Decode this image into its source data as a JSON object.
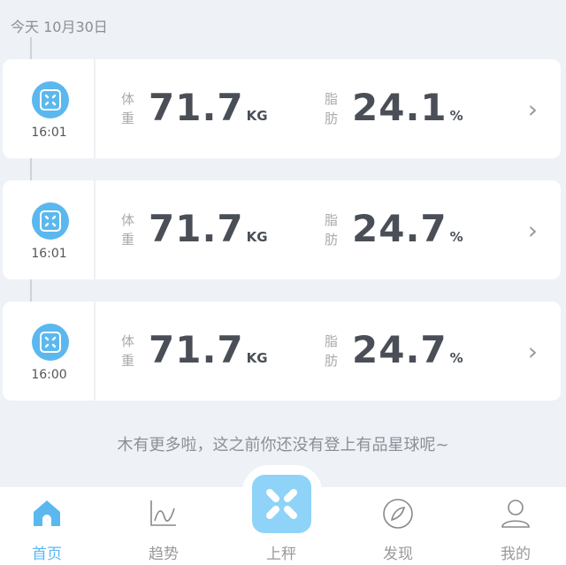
{
  "date": "今天 10月30日",
  "records": [
    {
      "time": "16:01",
      "weight_label_1": "体",
      "weight_label_2": "重",
      "weight": "71.7",
      "weight_unit": "KG",
      "fat_label_1": "脂",
      "fat_label_2": "肪",
      "fat": "24.1",
      "fat_unit": "%"
    },
    {
      "time": "16:01",
      "weight_label_1": "体",
      "weight_label_2": "重",
      "weight": "71.7",
      "weight_unit": "KG",
      "fat_label_1": "脂",
      "fat_label_2": "肪",
      "fat": "24.7",
      "fat_unit": "%"
    },
    {
      "time": "16:00",
      "weight_label_1": "体",
      "weight_label_2": "重",
      "weight": "71.7",
      "weight_unit": "KG",
      "fat_label_1": "脂",
      "fat_label_2": "肪",
      "fat": "24.7",
      "fat_unit": "%"
    }
  ],
  "footer": "木有更多啦，这之前你还没有登上有品星球呢~",
  "nav": [
    {
      "label": "首页",
      "icon": "home-icon",
      "active": true
    },
    {
      "label": "趋势",
      "icon": "trend-icon"
    },
    {
      "label": "上秤",
      "icon": "scale-icon"
    },
    {
      "label": "发现",
      "icon": "compass-icon"
    },
    {
      "label": "我的",
      "icon": "user-icon"
    }
  ],
  "colors": {
    "accent": "#5bb8ef",
    "background": "#eef2f7"
  }
}
